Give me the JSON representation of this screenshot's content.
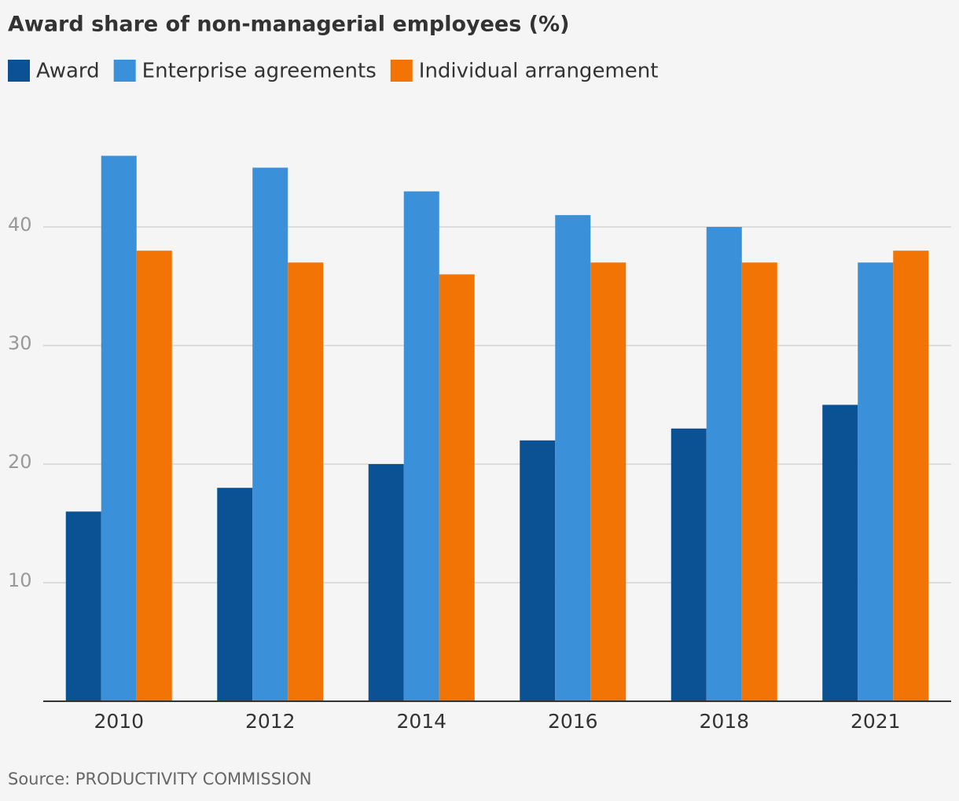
{
  "chart_data": {
    "type": "bar",
    "title": "Award share of non-managerial employees (%)",
    "source": "Source: PRODUCTIVITY COMMISSION",
    "categories": [
      "2010",
      "2012",
      "2014",
      "2016",
      "2018",
      "2021"
    ],
    "series": [
      {
        "name": "Award",
        "color": "#0a5294",
        "values": [
          16,
          18,
          20,
          22,
          23,
          25
        ]
      },
      {
        "name": "Enterprise agreements",
        "color": "#3b90da",
        "values": [
          46,
          45,
          43,
          41,
          40,
          37
        ]
      },
      {
        "name": "Individual arrangement",
        "color": "#f27405",
        "values": [
          38,
          37,
          36,
          37,
          37,
          38
        ]
      }
    ],
    "ylim": [
      0,
      50
    ],
    "yticks": [
      10,
      20,
      30,
      40
    ],
    "grid": true,
    "legend": "top"
  }
}
